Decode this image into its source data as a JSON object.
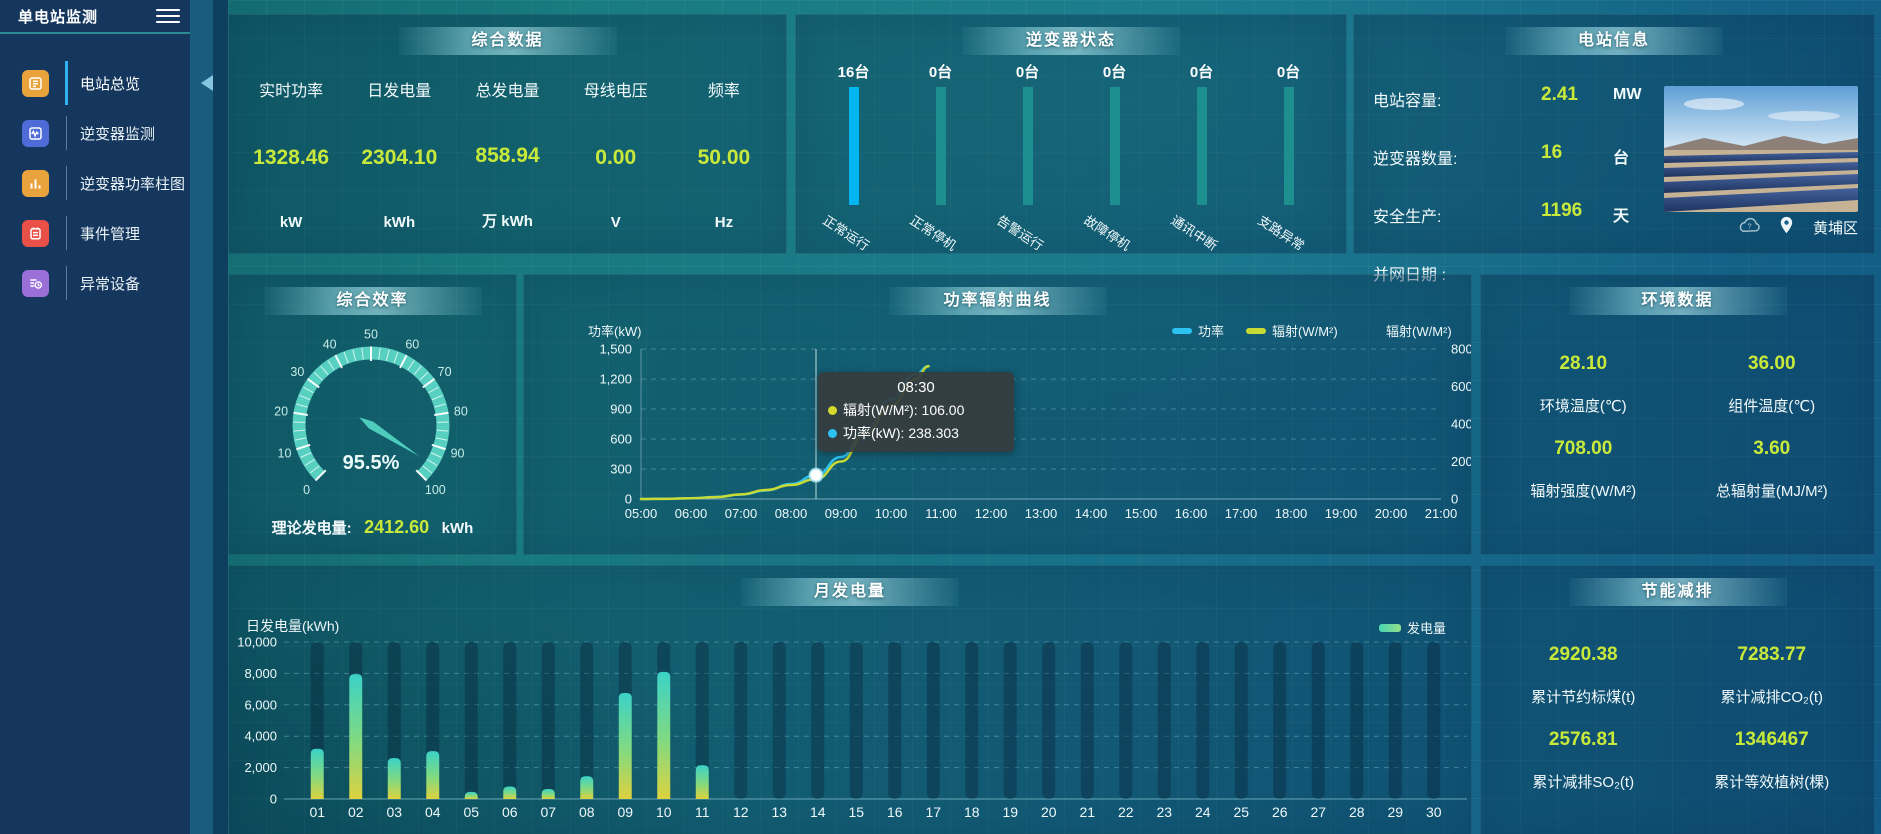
{
  "sidebar": {
    "title": "单电站监测",
    "items": [
      {
        "label": "电站总览",
        "icon": "report-icon",
        "color": "#e8a33d",
        "active": true
      },
      {
        "label": "逆变器监测",
        "icon": "waveform-icon",
        "color": "#4f6bd8",
        "active": false
      },
      {
        "label": "逆变器功率柱图",
        "icon": "bar-chart-icon",
        "color": "#e8a33d",
        "active": false
      },
      {
        "label": "事件管理",
        "icon": "event-icon",
        "color": "#e85048",
        "active": false
      },
      {
        "label": "异常设备",
        "icon": "abnormal-device-icon",
        "color": "#9a6fd8",
        "active": false
      }
    ]
  },
  "summary": {
    "title": "综合数据",
    "metrics": [
      {
        "label": "实时功率",
        "value": "1328.46",
        "unit": "kW"
      },
      {
        "label": "日发电量",
        "value": "2304.10",
        "unit": "kWh"
      },
      {
        "label": "总发电量",
        "value": "858.94",
        "unit": "万 kWh"
      },
      {
        "label": "母线电压",
        "value": "0.00",
        "unit": "V"
      },
      {
        "label": "频率",
        "value": "50.00",
        "unit": "Hz"
      }
    ]
  },
  "inverter_status": {
    "title": "逆变器状态",
    "bars": [
      {
        "count": "16台",
        "label": "正常运行",
        "highlight": true,
        "color": "#00b6f2"
      },
      {
        "count": "0台",
        "label": "正常停机",
        "highlight": false,
        "color": "#1d8f8e"
      },
      {
        "count": "0台",
        "label": "告警运行",
        "highlight": false,
        "color": "#1d8f8e"
      },
      {
        "count": "0台",
        "label": "故障停机",
        "highlight": false,
        "color": "#1d8f8e"
      },
      {
        "count": "0台",
        "label": "通讯中断",
        "highlight": false,
        "color": "#1d8f8e"
      },
      {
        "count": "0台",
        "label": "支路异常",
        "highlight": false,
        "color": "#1d8f8e"
      }
    ]
  },
  "station_info": {
    "title": "电站信息",
    "rows": [
      {
        "label": "电站容量:",
        "value": "2.41",
        "unit": "MW"
      },
      {
        "label": "逆变器数量:",
        "value": "16",
        "unit": "台"
      },
      {
        "label": "安全生产:",
        "value": "1196",
        "unit": "天"
      },
      {
        "label": "并网日期 :",
        "value": "",
        "unit": ""
      }
    ],
    "location": "黄埔区"
  },
  "efficiency": {
    "title": "综合效率",
    "gauge_value": 95.5,
    "gauge_label": "95.5%",
    "gauge_min": 0,
    "gauge_max": 100,
    "theory_label": "理论发电量:",
    "theory_value": "2412.60",
    "theory_unit": "kWh"
  },
  "environment": {
    "title": "环境数据",
    "items": [
      {
        "value": "28.10",
        "label": "环境温度(℃)"
      },
      {
        "value": "36.00",
        "label": "组件温度(℃)"
      },
      {
        "value": "708.00",
        "label": "辐射强度(W/M²)"
      },
      {
        "value": "3.60",
        "label": "总辐射量(MJ/M²)"
      }
    ]
  },
  "energy_saving": {
    "title": "节能减排",
    "items": [
      {
        "value": "2920.38",
        "label": "累计节约标煤(t)"
      },
      {
        "value": "7283.77",
        "label": "累计减排CO₂(t)"
      },
      {
        "value": "2576.81",
        "label": "累计减排SO₂(t)"
      },
      {
        "value": "1346467",
        "label": "累计等效植树(棵)"
      }
    ]
  },
  "chart_data": [
    {
      "id": "power_curve",
      "type": "line",
      "title": "功率辐射曲线",
      "x_labels": [
        "05:00",
        "06:00",
        "07:00",
        "08:00",
        "09:00",
        "10:00",
        "11:00",
        "12:00",
        "13:00",
        "14:00",
        "15:00",
        "16:00",
        "17:00",
        "18:00",
        "19:00",
        "20:00",
        "21:00"
      ],
      "x_range": [
        5,
        21
      ],
      "left_axis": {
        "title": "功率(kW)",
        "min": 0,
        "max": 1500,
        "ticks": [
          "1,500",
          "1,200",
          "900",
          "600",
          "300",
          "0"
        ]
      },
      "right_axis": {
        "title": "辐射(W/M²)",
        "min": 0,
        "max": 800,
        "ticks": [
          "800",
          "600",
          "400",
          "200",
          "0"
        ]
      },
      "legend": [
        {
          "name": "功率",
          "color": "#2cc3f2"
        },
        {
          "name": "辐射(W/M²)",
          "color": "#c8da33"
        }
      ],
      "series": [
        {
          "name": "功率",
          "axis": "left",
          "color": "#2cc3f2",
          "x": [
            5,
            5.5,
            6,
            6.5,
            7,
            7.5,
            8,
            8.5,
            9,
            9.5,
            10,
            10.5,
            10.75
          ],
          "values": [
            0,
            2,
            8,
            20,
            45,
            85,
            150,
            238.3,
            420,
            700,
            1000,
            1250,
            1328.5
          ]
        },
        {
          "name": "辐射(W/M²)",
          "axis": "right",
          "color": "#c8da33",
          "x": [
            5,
            5.5,
            6,
            6.5,
            7,
            7.5,
            8,
            8.5,
            9,
            9.5,
            10,
            10.5,
            10.75
          ],
          "values": [
            0,
            1,
            4,
            10,
            25,
            48,
            75,
            106,
            200,
            350,
            500,
            640,
            708
          ]
        }
      ],
      "tooltip": {
        "time": "08:30",
        "x": 8.5,
        "marker_value": 238.303,
        "rows": [
          {
            "text": "辐射(W/M²): 106.00",
            "color": "#d4d92e"
          },
          {
            "text": "功率(kW): 238.303",
            "color": "#2cc3f2"
          }
        ]
      }
    },
    {
      "id": "monthly",
      "type": "bar",
      "title": "月发电量",
      "ylabel": "日发电量(kWh)",
      "ymax": 10000,
      "y_ticks": [
        "10,000",
        "8,000",
        "6,000",
        "4,000",
        "2,000",
        "0"
      ],
      "legend": [
        {
          "name": "发电量",
          "color": "#62d9a2"
        }
      ],
      "categories": [
        "01",
        "02",
        "03",
        "04",
        "05",
        "06",
        "07",
        "08",
        "09",
        "10",
        "11",
        "12",
        "13",
        "14",
        "15",
        "16",
        "17",
        "18",
        "19",
        "20",
        "21",
        "22",
        "23",
        "24",
        "25",
        "26",
        "27",
        "28",
        "29",
        "30"
      ],
      "values": [
        3200,
        7950,
        2600,
        3050,
        450,
        800,
        640,
        1450,
        6750,
        8100,
        2150,
        0,
        0,
        0,
        0,
        0,
        0,
        0,
        0,
        0,
        0,
        0,
        0,
        0,
        0,
        0,
        0,
        0,
        0,
        0
      ]
    }
  ],
  "colors": {
    "value_yellow": "#c9e93a",
    "active_bar": "#00b6f2",
    "idle_bar": "#1d8f8e",
    "gauge": "#57d0c1",
    "bar_gradient_top": "#3bd2c7",
    "bar_gradient_bottom": "#ddd23e"
  }
}
